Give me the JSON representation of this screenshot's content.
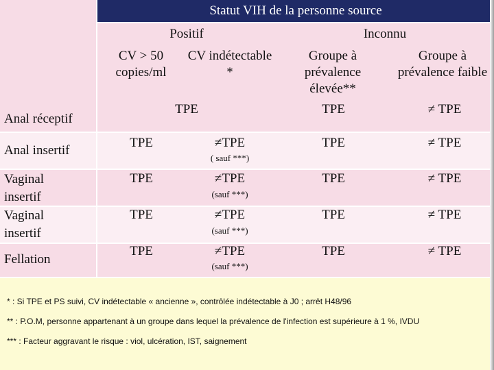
{
  "header": {
    "title": "Statut VIH de la personne source",
    "positive": "Positif",
    "unknown": "Inconnu",
    "col1": "CV > 50 copies/ml",
    "col2": "CV indétectable *",
    "col3": "Groupe à prévalence élevée**",
    "col4": "Groupe à prévalence faible"
  },
  "rows": [
    {
      "label": "Anal réceptif",
      "c12": "TPE",
      "c3": "TPE",
      "c4": "≠ TPE"
    },
    {
      "label": "Anal insertif",
      "c1": "TPE",
      "c2": "≠TPE",
      "c2_note": "( sauf ***)",
      "c3": "TPE",
      "c4": "≠ TPE"
    },
    {
      "label": "Vaginal insertif",
      "c1": "TPE",
      "c2": "≠TPE",
      "c2_note": "(sauf ***)",
      "c3": "TPE",
      "c4": "≠ TPE"
    },
    {
      "label": "Vaginal insertif",
      "c1": "TPE",
      "c2": "≠TPE",
      "c2_note": "(sauf ***)",
      "c3": "TPE",
      "c4": "≠ TPE"
    },
    {
      "label": "Fellation",
      "c1": "TPE",
      "c2": "≠TPE",
      "c2_note": "(sauf ***)",
      "c3": "TPE",
      "c4": "≠ TPE"
    }
  ],
  "footnotes": [
    "* : Si TPE et PS suivi, CV indétectable « ancienne », contrôlée indétectable à J0 ; arrêt H48/96",
    "** : P.O.M, personne appartenant à un groupe dans lequel la prévalence de l'infection est supérieure à 1 %, IVDU",
    "*** : Facteur aggravant le risque : viol, ulcération, IST, saignement"
  ],
  "colors": {
    "header": "#1f2a66",
    "row_dark": "#f7dce6",
    "row_light": "#fbeef3",
    "footer": "#fdfbd4"
  }
}
